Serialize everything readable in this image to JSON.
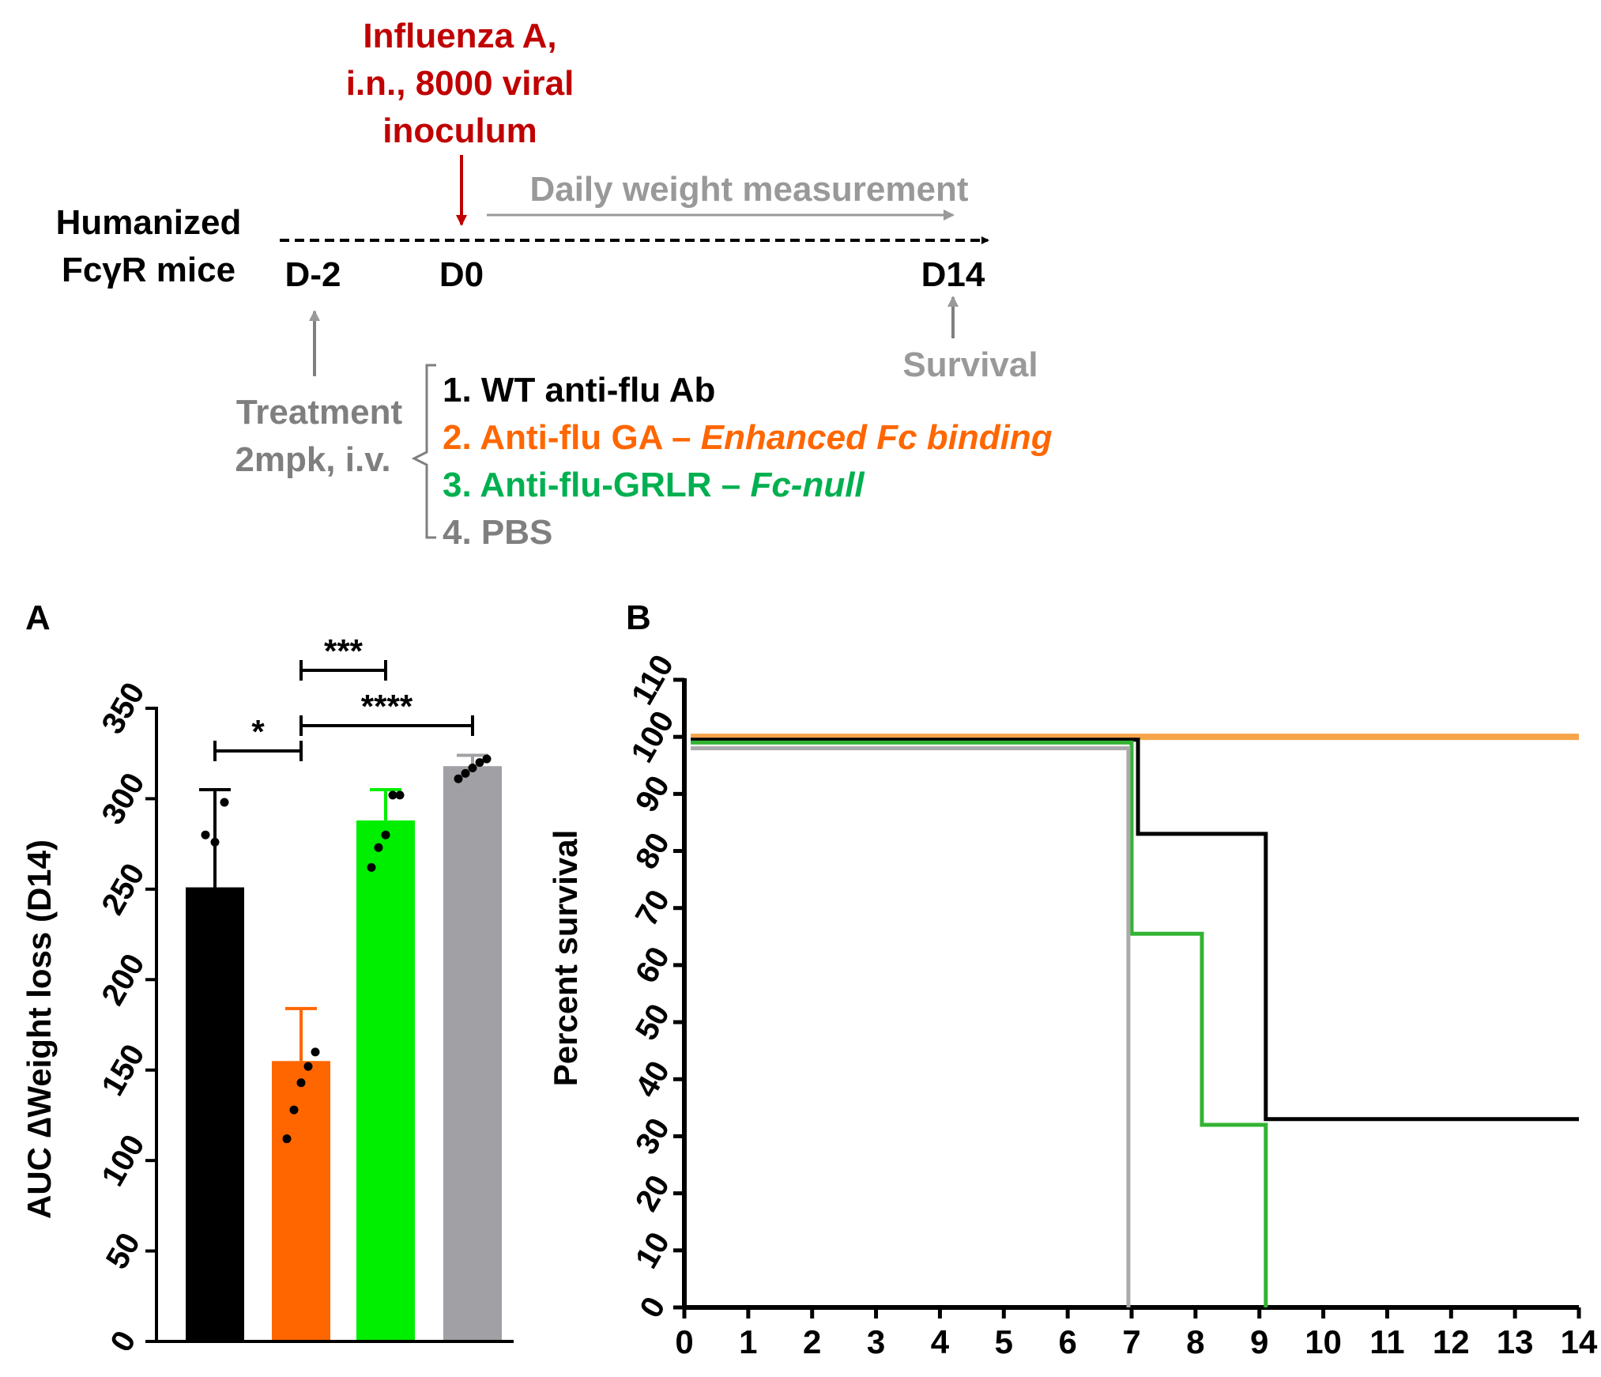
{
  "colors": {
    "black": "#000000",
    "red": "#c00000",
    "orange": "#ff6600",
    "orange_line": "#f7a44a",
    "green": "#00b050",
    "green_bar": "#00ee00",
    "green_line": "#33b333",
    "grey_text": "#999999",
    "grey_dark": "#7f7f7f",
    "grey_bar": "#a0a0a5",
    "grey_line": "#aaaaaa"
  },
  "schematic": {
    "mice_label": [
      "Humanized",
      "FcγR mice"
    ],
    "virus_label": [
      "Influenza A,",
      "i.n., 8000 viral",
      "inoculum"
    ],
    "daily_label": "Daily weight measurement",
    "days": [
      "D-2",
      "D0",
      "D14"
    ],
    "survival_label": "Survival",
    "treatment_label": [
      "Treatment",
      "2mpk, i.v."
    ],
    "groups": [
      {
        "text": "1. WT anti-flu Ab",
        "italic": ""
      },
      {
        "text": "2. Anti-flu GA – ",
        "italic": "Enhanced Fc binding"
      },
      {
        "text": "3. Anti-flu-GRLR – ",
        "italic": "Fc-null"
      },
      {
        "text": "4. PBS",
        "italic": ""
      }
    ]
  },
  "chart_data": [
    {
      "panel": "A",
      "type": "bar",
      "ylabel": "AUC ∆Weight loss (D14)",
      "ylim": [
        0,
        350
      ],
      "yticks": [
        0,
        50,
        100,
        150,
        200,
        250,
        300,
        350
      ],
      "values": [
        251,
        155,
        288,
        318
      ],
      "errors": [
        54,
        29,
        17,
        6
      ],
      "points": [
        [
          280,
          276,
          298
        ],
        [
          112,
          128,
          143,
          152,
          160
        ],
        [
          262,
          273,
          280,
          302,
          302
        ],
        [
          311,
          314,
          317,
          320,
          322
        ]
      ],
      "bar_colors": [
        "#000000",
        "#ff6600",
        "#00ee00",
        "#a0a0a5"
      ],
      "significance": [
        {
          "from": 0,
          "to": 1,
          "label": "*"
        },
        {
          "from": 1,
          "to": 2,
          "label": "***"
        },
        {
          "from": 1,
          "to": 3,
          "label": "****"
        }
      ]
    },
    {
      "panel": "B",
      "type": "line",
      "step": true,
      "ylabel": "Percent survival",
      "ylim": [
        0,
        110
      ],
      "yticks": [
        0,
        10,
        20,
        30,
        40,
        50,
        60,
        70,
        80,
        90,
        100,
        110
      ],
      "xlim": [
        0,
        14
      ],
      "xticks": [
        0,
        1,
        2,
        3,
        4,
        5,
        6,
        7,
        8,
        9,
        10,
        11,
        12,
        13,
        14
      ],
      "series": [
        {
          "color": "#f7a44a",
          "points": [
            [
              0.1,
              100
            ],
            [
              14,
              100
            ]
          ]
        },
        {
          "color": "#000000",
          "points": [
            [
              0.1,
              99.5
            ],
            [
              7.1,
              99.5
            ],
            [
              7.1,
              83
            ],
            [
              9.1,
              83
            ],
            [
              9.1,
              33
            ],
            [
              14,
              33
            ]
          ]
        },
        {
          "color": "#33b333",
          "points": [
            [
              0.1,
              99
            ],
            [
              7,
              99
            ],
            [
              7,
              65.5
            ],
            [
              8.1,
              65.5
            ],
            [
              8.1,
              32
            ],
            [
              9.1,
              32
            ],
            [
              9.1,
              0
            ]
          ]
        },
        {
          "color": "#aaaaaa",
          "points": [
            [
              0.1,
              98
            ],
            [
              6.95,
              98
            ],
            [
              6.95,
              0
            ]
          ]
        }
      ]
    }
  ]
}
